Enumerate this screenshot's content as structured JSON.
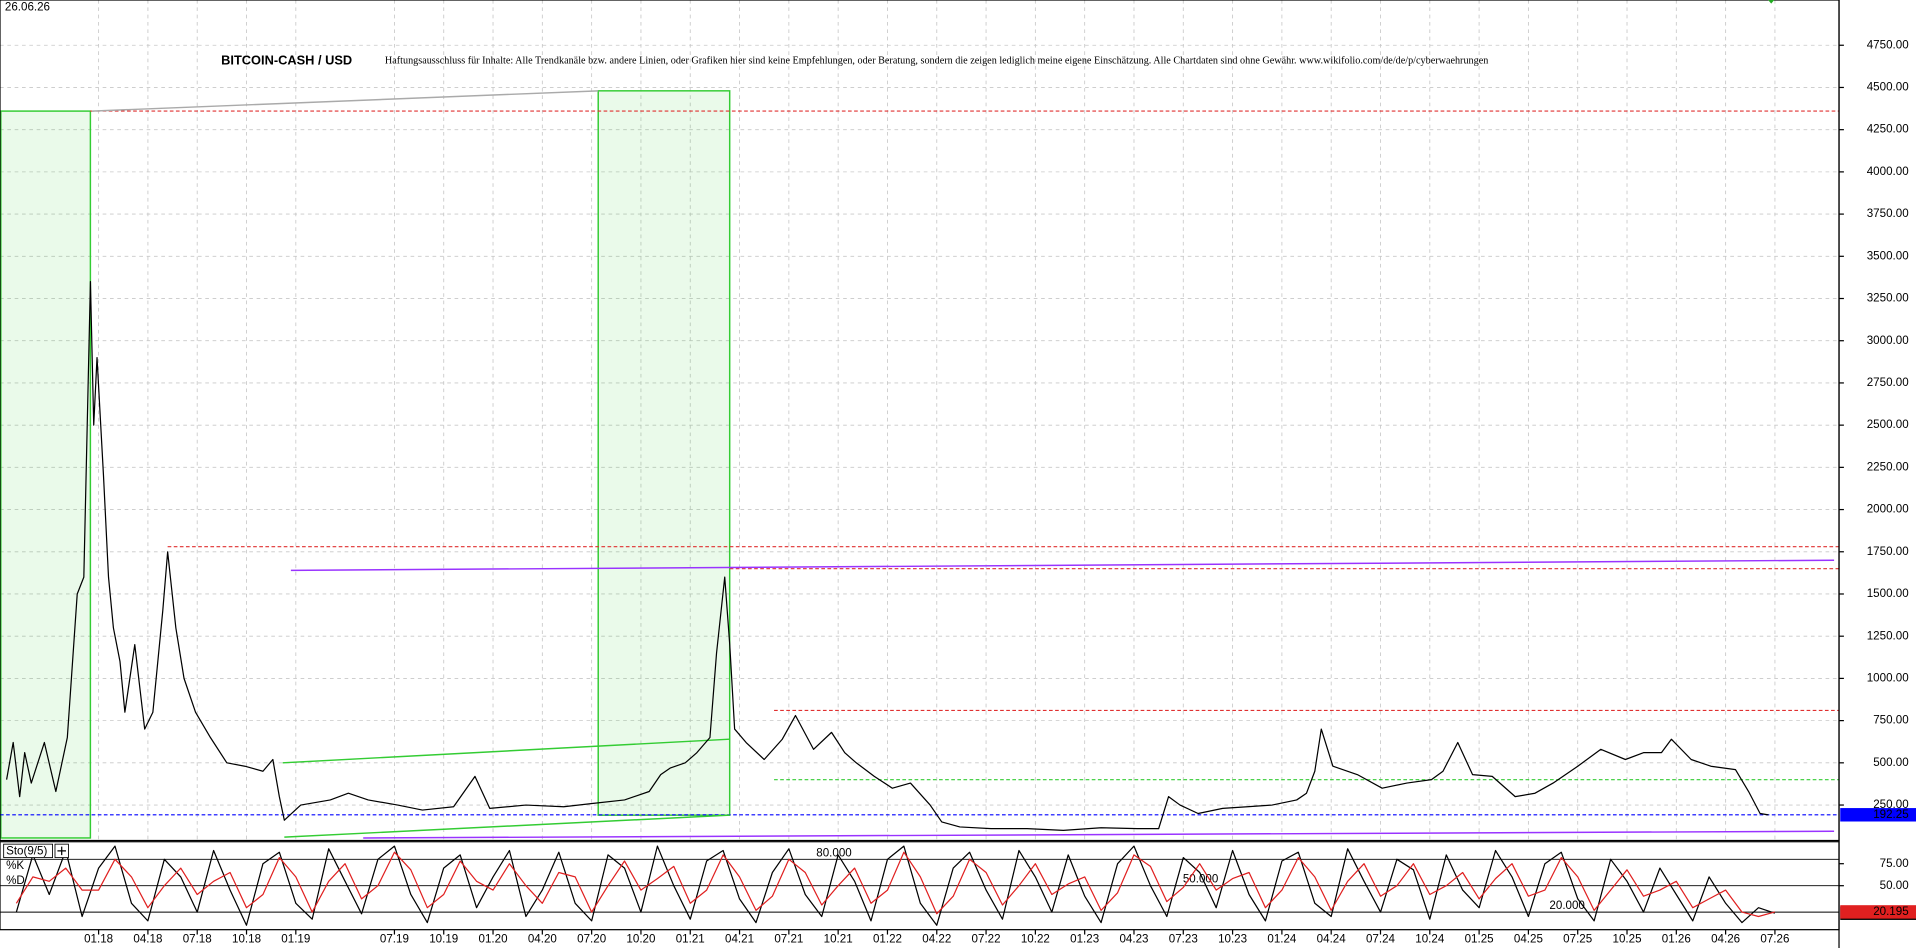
{
  "date": "26.06.26",
  "chart_data": [
    {
      "type": "line",
      "title": "BITCOIN-CASH / USD",
      "subtitle": "Haftungsausschluss für Inhalte: Alle Trendkanäle bzw. andere Linien, oder Grafiken hier sind keine Empfehlungen, oder Beratung, sondern die zeigen lediglich meine eigene Einschätzung. Alle Chartdaten sind ohne Gewähr. www.wikifolio.com/de/de/p/cyberwaehrungen",
      "x": [
        6.4,
        6.8,
        7.2,
        7.5,
        7.9,
        8.7,
        9.4,
        10.1,
        10.7,
        11.1,
        11.5,
        11.7,
        11.9,
        12.3,
        12.6,
        12.9,
        13.3,
        13.6,
        14.2,
        14.8,
        15.3,
        15.9,
        16.2,
        16.7,
        17.2,
        17.9,
        18.8,
        19.8,
        20.9,
        22,
        22.6,
        23,
        23.3,
        24.3,
        26.1,
        27.2,
        28.4,
        30.2,
        31.7,
        33.6,
        34.9,
        35.8,
        38,
        40.3,
        42.1,
        44,
        45.5,
        46.2,
        46.8,
        47.7,
        48.4,
        49.2,
        49.6,
        50.1,
        50.4,
        50.7,
        51.4,
        52.5,
        53.6,
        54.4,
        55.5,
        56.6,
        57.4,
        58.1,
        59.2,
        60.3,
        61.4,
        62.6,
        63.3,
        64.4,
        66.3,
        68.5,
        70.7,
        73,
        75.2,
        76.5,
        77.1,
        77.8,
        78.9,
        80.4,
        81.9,
        83.4,
        84.9,
        85.5,
        86,
        86.4,
        87.1,
        88.6,
        90.1,
        91.6,
        93.1,
        93.8,
        94.7,
        95.6,
        96.8,
        98.2,
        99.4,
        100.5,
        102,
        103.4,
        104.9,
        106,
        107.1,
        107.7,
        108.9,
        110.1,
        111.6,
        112.4,
        113.1,
        113.6
      ],
      "series": [
        {
          "name": "BITCOIN-CASH / USD",
          "color": "#000000",
          "values": [
            400,
            620,
            300,
            560,
            380,
            620,
            330,
            650,
            1500,
            1600,
            3350,
            2500,
            2900,
            2200,
            1600,
            1300,
            1100,
            800,
            1200,
            700,
            800,
            1400,
            1750,
            1300,
            1000,
            800,
            650,
            500,
            480,
            450,
            520,
            300,
            160,
            250,
            280,
            320,
            280,
            250,
            220,
            240,
            420,
            230,
            250,
            240,
            260,
            280,
            330,
            430,
            470,
            500,
            560,
            650,
            1150,
            1600,
            1200,
            700,
            620,
            520,
            640,
            780,
            580,
            680,
            560,
            500,
            420,
            350,
            380,
            250,
            150,
            120,
            110,
            110,
            100,
            115,
            110,
            110,
            300,
            250,
            200,
            230,
            240,
            250,
            280,
            320,
            450,
            700,
            480,
            430,
            350,
            380,
            400,
            450,
            620,
            430,
            420,
            300,
            320,
            380,
            480,
            580,
            520,
            560,
            560,
            640,
            520,
            480,
            460,
            330,
            200,
            192.25
          ]
        }
      ],
      "xlim": [
        6,
        117.9
      ],
      "ylim": [
        40,
        5018
      ],
      "xticks": [
        {
          "value": 12,
          "label": "01.18"
        },
        {
          "value": 15,
          "label": "04.18"
        },
        {
          "value": 18,
          "label": "07.18"
        },
        {
          "value": 21,
          "label": "10.18"
        },
        {
          "value": 24,
          "label": "01.19"
        },
        {
          "value": 30,
          "label": "07.19"
        },
        {
          "value": 33,
          "label": "10.19"
        },
        {
          "value": 36,
          "label": "01.20"
        },
        {
          "value": 39,
          "label": "04.20"
        },
        {
          "value": 42,
          "label": "07.20"
        },
        {
          "value": 45,
          "label": "10.20"
        },
        {
          "value": 48,
          "label": "01.21"
        },
        {
          "value": 51,
          "label": "04.21"
        },
        {
          "value": 54,
          "label": "07.21"
        },
        {
          "value": 57,
          "label": "10.21"
        },
        {
          "value": 60,
          "label": "01.22"
        },
        {
          "value": 63,
          "label": "04.22"
        },
        {
          "value": 66,
          "label": "07.22"
        },
        {
          "value": 69,
          "label": "10.22"
        },
        {
          "value": 72,
          "label": "01.23"
        },
        {
          "value": 75,
          "label": "04.23"
        },
        {
          "value": 78,
          "label": "07.23"
        },
        {
          "value": 81,
          "label": "10.23"
        },
        {
          "value": 84,
          "label": "01.24"
        },
        {
          "value": 87,
          "label": "04.24"
        },
        {
          "value": 90,
          "label": "07.24"
        },
        {
          "value": 93,
          "label": "10.24"
        },
        {
          "value": 96,
          "label": "01.25"
        },
        {
          "value": 99,
          "label": "04.25"
        },
        {
          "value": 102,
          "label": "07.25"
        },
        {
          "value": 105,
          "label": "10.25"
        },
        {
          "value": 108,
          "label": "01.26"
        },
        {
          "value": 111,
          "label": "04.26"
        },
        {
          "value": 114,
          "label": "07.26"
        }
      ],
      "yticks": [
        {
          "value": 250,
          "label": "250.00"
        },
        {
          "value": 500,
          "label": "500.00"
        },
        {
          "value": 750,
          "label": "750.00"
        },
        {
          "value": 1000,
          "label": "1000.00"
        },
        {
          "value": 1250,
          "label": "1250.00"
        },
        {
          "value": 1500,
          "label": "1500.00"
        },
        {
          "value": 1750,
          "label": "1750.00"
        },
        {
          "value": 2000,
          "label": "2000.00"
        },
        {
          "value": 2250,
          "label": "2250.00"
        },
        {
          "value": 2500,
          "label": "2500.00"
        },
        {
          "value": 2750,
          "label": "2750.00"
        },
        {
          "value": 3000,
          "label": "3000.00"
        },
        {
          "value": 3250,
          "label": "3250.00"
        },
        {
          "value": 3500,
          "label": "3500.00"
        },
        {
          "value": 3750,
          "label": "3750.00"
        },
        {
          "value": 4000,
          "label": "4000.00"
        },
        {
          "value": 4250,
          "label": "4250.00"
        },
        {
          "value": 4500,
          "label": "4500.00"
        },
        {
          "value": 4750,
          "label": "4750.00"
        }
      ],
      "grid": true,
      "last_value_color": "#0000ff",
      "boxes": [
        {
          "x": [
            6.05,
            11.5
          ],
          "y": [
            55,
            4360
          ],
          "color": "#33cc33"
        },
        {
          "x": [
            42.4,
            50.4
          ],
          "y": [
            190,
            4480
          ],
          "color": "#33cc33"
        }
      ],
      "hlines": [
        {
          "value": 4360,
          "from": 11.5,
          "color": "#e03030"
        },
        {
          "value": 1780,
          "from": 16.2,
          "color": "#e03030"
        },
        {
          "value": 1650,
          "from": 50.4,
          "color": "#e03030"
        },
        {
          "value": 810,
          "from": 53.1,
          "color": "#e03030"
        },
        {
          "value": 400,
          "from": 53.1,
          "color": "#33cc33"
        },
        {
          "value": 192.25,
          "from": 6,
          "color": "#0000ff"
        }
      ],
      "lines": [
        {
          "x": [
            23.7,
            117.6
          ],
          "y": [
            1640,
            1700
          ],
          "color": "#9933ff"
        },
        {
          "x": [
            28.1,
            117.6
          ],
          "y": [
            55,
            95
          ],
          "color": "#9933ff"
        },
        {
          "x": [
            23.2,
            50.4
          ],
          "y": [
            500,
            640
          ],
          "color": "#33cc33"
        },
        {
          "x": [
            23.3,
            50.4
          ],
          "y": [
            60,
            190
          ],
          "color": "#33cc33"
        },
        {
          "x": [
            11.6,
            42.4
          ],
          "y": [
            4360,
            4480
          ],
          "color": "#aaaaaa"
        }
      ]
    },
    {
      "type": "line",
      "title": "Sto(9/5)",
      "x": [
        7,
        8,
        9,
        10,
        11,
        12,
        13,
        14,
        15,
        16,
        17,
        18,
        19,
        20,
        21,
        22,
        23,
        24,
        25,
        26,
        27,
        28,
        29,
        30,
        31,
        32,
        33,
        34,
        35,
        36,
        37,
        38,
        39,
        40,
        41,
        42,
        43,
        44,
        45,
        46,
        47,
        48,
        49,
        50,
        51,
        52,
        53,
        54,
        55,
        56,
        57,
        58,
        59,
        60,
        61,
        62,
        63,
        64,
        65,
        66,
        67,
        68,
        69,
        70,
        71,
        72,
        73,
        74,
        75,
        76,
        77,
        78,
        79,
        80,
        81,
        82,
        83,
        84,
        85,
        86,
        87,
        88,
        89,
        90,
        91,
        92,
        93,
        94,
        95,
        96,
        97,
        98,
        99,
        100,
        101,
        102,
        103,
        104,
        105,
        106,
        107,
        108,
        109,
        110,
        111,
        112,
        113,
        114
      ],
      "series": [
        {
          "name": "%K",
          "color": "#000000",
          "values": [
            20,
            85,
            40,
            90,
            15,
            70,
            95,
            30,
            10,
            80,
            60,
            20,
            90,
            45,
            5,
            75,
            88,
            30,
            12,
            92,
            55,
            18,
            80,
            95,
            40,
            8,
            70,
            85,
            25,
            60,
            90,
            15,
            45,
            88,
            30,
            10,
            85,
            70,
            20,
            95,
            50,
            12,
            78,
            90,
            35,
            8,
            65,
            92,
            40,
            15,
            85,
            55,
            10,
            80,
            95,
            30,
            5,
            70,
            88,
            45,
            12,
            90,
            60,
            20,
            85,
            38,
            8,
            75,
            95,
            50,
            15,
            82,
            65,
            25,
            90,
            40,
            10,
            78,
            88,
            30,
            15,
            92,
            55,
            20,
            80,
            68,
            12,
            85,
            45,
            25,
            90,
            60,
            15,
            75,
            88,
            35,
            10,
            80,
            55,
            20,
            70,
            40,
            10,
            60,
            30,
            8,
            25,
            18.723
          ]
        },
        {
          "name": "%D",
          "color": "#e02020",
          "values": [
            30,
            60,
            55,
            70,
            45,
            45,
            80,
            60,
            25,
            50,
            70,
            40,
            55,
            65,
            25,
            40,
            82,
            60,
            20,
            55,
            75,
            35,
            50,
            88,
            68,
            25,
            40,
            78,
            55,
            45,
            75,
            50,
            30,
            65,
            60,
            20,
            50,
            78,
            45,
            58,
            72,
            30,
            45,
            85,
            60,
            22,
            38,
            80,
            65,
            28,
            50,
            70,
            30,
            45,
            88,
            60,
            18,
            38,
            80,
            65,
            28,
            50,
            75,
            40,
            52,
            60,
            22,
            42,
            85,
            72,
            32,
            48,
            75,
            45,
            58,
            65,
            25,
            45,
            82,
            60,
            22,
            55,
            75,
            38,
            50,
            75,
            40,
            50,
            65,
            35,
            58,
            75,
            38,
            45,
            82,
            60,
            22,
            45,
            68,
            38,
            45,
            55,
            25,
            35,
            45,
            20,
            15,
            20.195
          ]
        }
      ],
      "xlim": [
        6,
        117.9
      ],
      "ylim": [
        0,
        100
      ],
      "yticks": [
        {
          "value": 75,
          "label": "75.00"
        },
        {
          "value": 50,
          "label": "50.00"
        }
      ],
      "levels": [
        {
          "value": 80,
          "label": "80.000"
        },
        {
          "value": 50,
          "label": "50.000"
        },
        {
          "value": 20,
          "label": "20.000"
        }
      ]
    }
  ]
}
